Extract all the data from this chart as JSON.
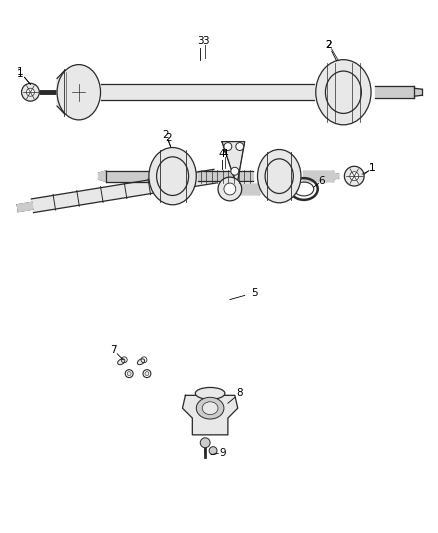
{
  "background_color": "#ffffff",
  "fig_width": 4.38,
  "fig_height": 5.33,
  "dpi": 100,
  "line_color": "#2a2a2a",
  "fill_light": "#e8e8e8",
  "fill_mid": "#cccccc",
  "fill_dark": "#aaaaaa"
}
